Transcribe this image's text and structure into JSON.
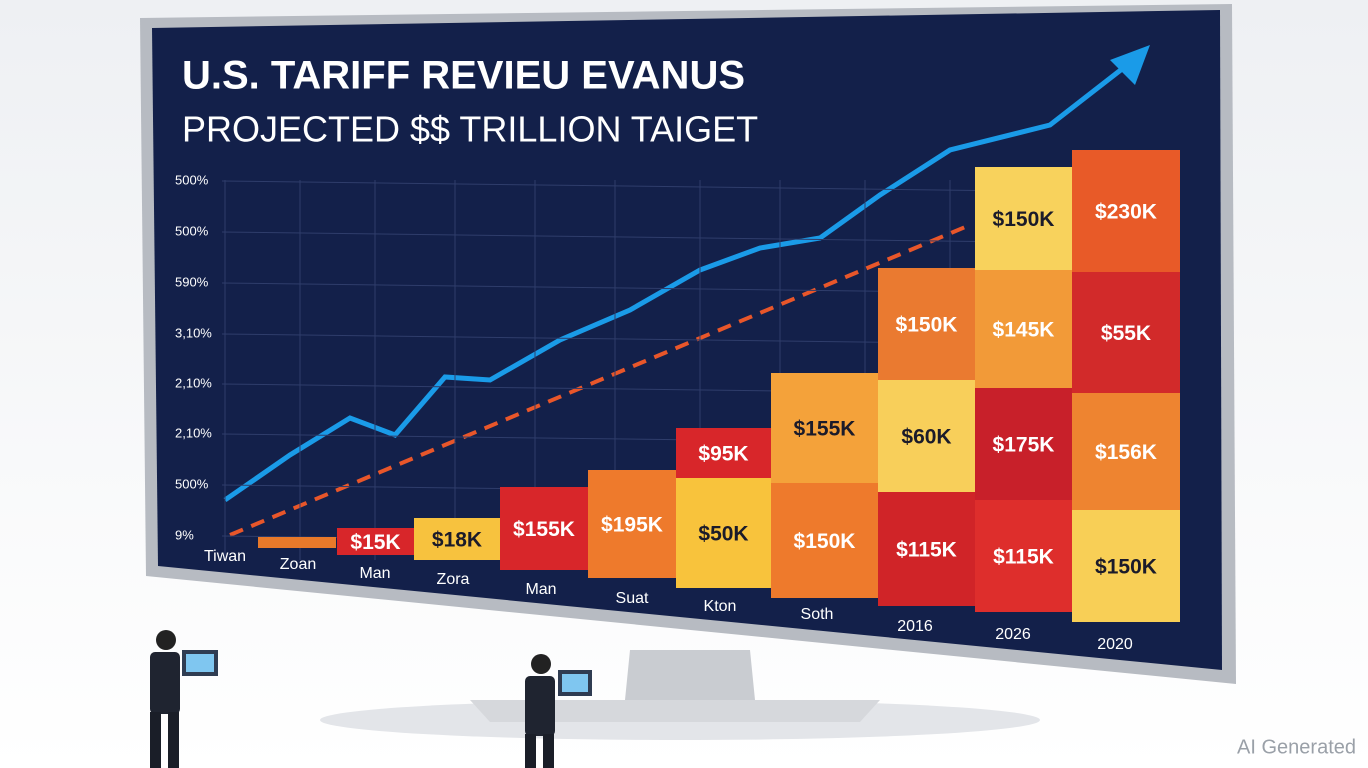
{
  "title": "U.S. TARIFF REVIEU EVANUS",
  "subtitle": "PROJECTED $$ TRILLION TAIGET",
  "y_labels": [
    "500%",
    "500%",
    "590%",
    "3,10%",
    "2,10%",
    "2,10%",
    "500%",
    "9%"
  ],
  "x_labels": [
    "Tiwan",
    "Zoan",
    "Man",
    "Zora",
    "Man",
    "Suat",
    "Kton",
    "Soth",
    "2016",
    "2026",
    "2020"
  ],
  "columns": [
    {
      "blocks": [
        {
          "color": "#e8792a"
        }
      ]
    },
    {
      "blocks": [
        {
          "label": "$15K",
          "color": "#d8262a"
        }
      ]
    },
    {
      "blocks": [
        {
          "label": "$18K",
          "color": "#f7c23e"
        }
      ]
    },
    {
      "blocks": [
        {
          "label": "$155K",
          "color": "#d8262a"
        }
      ]
    },
    {
      "blocks": [
        {
          "label": "$195K",
          "color": "#ee7a2c"
        }
      ]
    },
    {
      "blocks": [
        {
          "label": "$50K",
          "color": "#f8c33c"
        },
        {
          "label": "$95K",
          "color": "#d8262a"
        }
      ]
    },
    {
      "blocks": [
        {
          "label": "$150K",
          "color": "#ee7a2c"
        },
        {
          "label": "$155K",
          "color": "#f4a23a"
        }
      ]
    },
    {
      "blocks": [
        {
          "label": "$115K",
          "color": "#d02428"
        },
        {
          "label": "$60K",
          "color": "#f8cf5a"
        },
        {
          "label": "$150K",
          "color": "#ea7a30"
        }
      ]
    },
    {
      "blocks": [
        {
          "label": "$115K",
          "color": "#de2e2c"
        },
        {
          "label": "$175K",
          "color": "#c8202a"
        },
        {
          "label": "$145K",
          "color": "#f29a38"
        },
        {
          "label": "$150K",
          "color": "#f8d25c"
        }
      ]
    },
    {
      "blocks": [
        {
          "label": "$150K",
          "color": "#f8cf56"
        },
        {
          "label": "$156K",
          "color": "#ee8430"
        },
        {
          "label": "$55K",
          "color": "#d22a2a"
        },
        {
          "label": "$230K",
          "color": "#e85a28"
        }
      ]
    }
  ],
  "watermark": "AI Generated"
}
